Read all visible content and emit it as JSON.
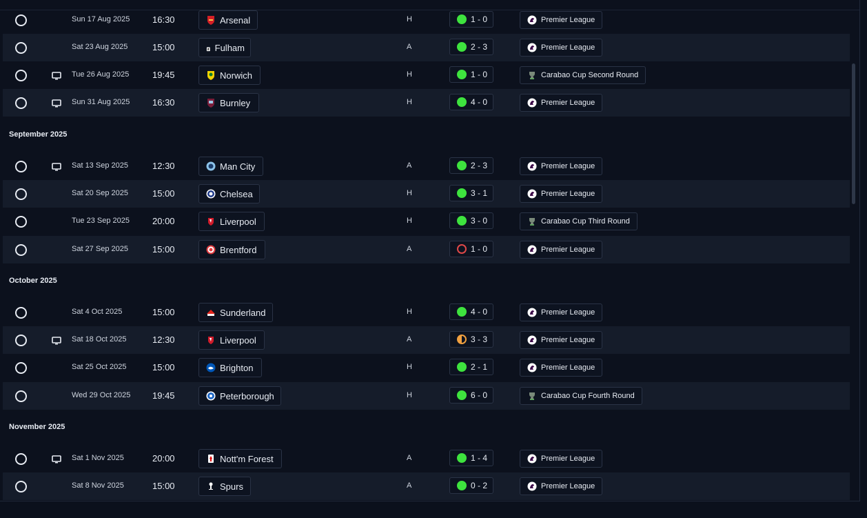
{
  "months": [
    "September 2025",
    "October 2025",
    "November 2025"
  ],
  "colors": {
    "win": "#3ee33e",
    "loss": "#e04848",
    "draw": "#f0a040"
  },
  "matches": [
    {
      "date": "Sun 17 Aug 2025",
      "time": "16:30",
      "team": "Arsenal",
      "crest": "arsenal-crest-icon",
      "venue": "H",
      "result": "win",
      "score": "1 - 0",
      "competition": "Premier League",
      "comp_icon": "premier-league-icon",
      "tv": false
    },
    {
      "date": "Sat 23 Aug 2025",
      "time": "15:00",
      "team": "Fulham",
      "crest": "fulham-crest-icon",
      "venue": "A",
      "result": "win",
      "score": "2 - 3",
      "competition": "Premier League",
      "comp_icon": "premier-league-icon",
      "tv": false
    },
    {
      "date": "Tue 26 Aug 2025",
      "time": "19:45",
      "team": "Norwich",
      "crest": "norwich-crest-icon",
      "venue": "H",
      "result": "win",
      "score": "1 - 0",
      "competition": "Carabao Cup Second Round",
      "comp_icon": "carabao-cup-icon",
      "tv": true
    },
    {
      "date": "Sun 31 Aug 2025",
      "time": "16:30",
      "team": "Burnley",
      "crest": "burnley-crest-icon",
      "venue": "H",
      "result": "win",
      "score": "4 - 0",
      "competition": "Premier League",
      "comp_icon": "premier-league-icon",
      "tv": true
    },
    {
      "date": "Sat 13 Sep 2025",
      "time": "12:30",
      "team": "Man City",
      "crest": "man-city-crest-icon",
      "venue": "A",
      "result": "win",
      "score": "2 - 3",
      "competition": "Premier League",
      "comp_icon": "premier-league-icon",
      "tv": true
    },
    {
      "date": "Sat 20 Sep 2025",
      "time": "15:00",
      "team": "Chelsea",
      "crest": "chelsea-crest-icon",
      "venue": "H",
      "result": "win",
      "score": "3 - 1",
      "competition": "Premier League",
      "comp_icon": "premier-league-icon",
      "tv": false
    },
    {
      "date": "Tue 23 Sep 2025",
      "time": "20:00",
      "team": "Liverpool",
      "crest": "liverpool-crest-icon",
      "venue": "H",
      "result": "win",
      "score": "3 - 0",
      "competition": "Carabao Cup Third Round",
      "comp_icon": "carabao-cup-icon",
      "tv": false
    },
    {
      "date": "Sat 27 Sep 2025",
      "time": "15:00",
      "team": "Brentford",
      "crest": "brentford-crest-icon",
      "venue": "A",
      "result": "loss",
      "score": "1 - 0",
      "competition": "Premier League",
      "comp_icon": "premier-league-icon",
      "tv": false
    },
    {
      "date": "Sat 4 Oct 2025",
      "time": "15:00",
      "team": "Sunderland",
      "crest": "sunderland-crest-icon",
      "venue": "H",
      "result": "win",
      "score": "4 - 0",
      "competition": "Premier League",
      "comp_icon": "premier-league-icon",
      "tv": false
    },
    {
      "date": "Sat 18 Oct 2025",
      "time": "12:30",
      "team": "Liverpool",
      "crest": "liverpool-crest-icon",
      "venue": "A",
      "result": "draw",
      "score": "3 - 3",
      "competition": "Premier League",
      "comp_icon": "premier-league-icon",
      "tv": true
    },
    {
      "date": "Sat 25 Oct 2025",
      "time": "15:00",
      "team": "Brighton",
      "crest": "brighton-crest-icon",
      "venue": "H",
      "result": "win",
      "score": "2 - 1",
      "competition": "Premier League",
      "comp_icon": "premier-league-icon",
      "tv": false
    },
    {
      "date": "Wed 29 Oct 2025",
      "time": "19:45",
      "team": "Peterborough",
      "crest": "peterborough-crest-icon",
      "venue": "H",
      "result": "win",
      "score": "6 - 0",
      "competition": "Carabao Cup Fourth Round",
      "comp_icon": "carabao-cup-icon",
      "tv": false
    },
    {
      "date": "Sat 1 Nov 2025",
      "time": "20:00",
      "team": "Nott'm Forest",
      "crest": "nottm-forest-crest-icon",
      "venue": "A",
      "result": "win",
      "score": "1 - 4",
      "competition": "Premier League",
      "comp_icon": "premier-league-icon",
      "tv": true
    },
    {
      "date": "Sat 8 Nov 2025",
      "time": "15:00",
      "team": "Spurs",
      "crest": "spurs-crest-icon",
      "venue": "A",
      "result": "win",
      "score": "0 - 2",
      "competition": "Premier League",
      "comp_icon": "premier-league-icon",
      "tv": false
    }
  ]
}
